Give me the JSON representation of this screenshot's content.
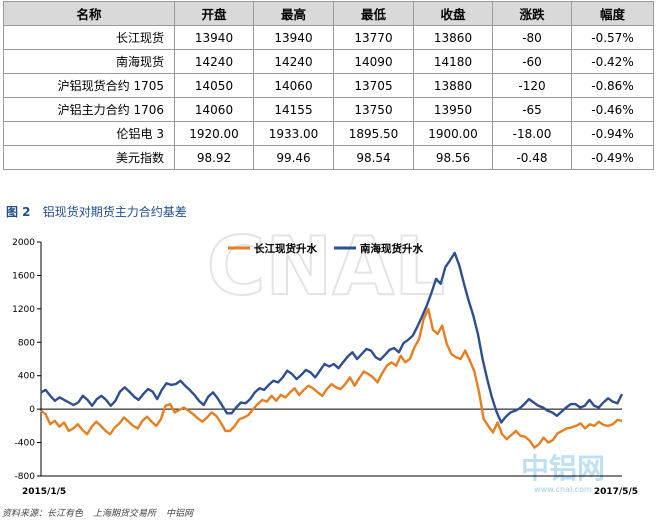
{
  "table": {
    "headers": [
      "名称",
      "开盘",
      "最高",
      "最低",
      "收盘",
      "涨跌",
      "幅度"
    ],
    "rows": [
      [
        "长江现货",
        "13940",
        "13940",
        "13770",
        "13860",
        "-80",
        "-0.57%"
      ],
      [
        "南海现货",
        "14240",
        "14240",
        "14090",
        "14180",
        "-60",
        "-0.42%"
      ],
      [
        "沪铝现货合约 1705",
        "14050",
        "14060",
        "13705",
        "13880",
        "-120",
        "-0.86%"
      ],
      [
        "沪铝主力合约 1706",
        "14060",
        "14155",
        "13750",
        "13950",
        "-65",
        "-0.46%"
      ],
      [
        "伦铝电 3",
        "1920.00",
        "1933.00",
        "1895.50",
        "1900.00",
        "-18.00",
        "-0.94%"
      ],
      [
        "美元指数",
        "98.92",
        "99.46",
        "98.54",
        "98.56",
        "-0.48",
        "-0.49%"
      ]
    ]
  },
  "figure": {
    "number": "图 2",
    "title": "铝现货对期货主力合约基差"
  },
  "source": [
    "资料来源：长江有色",
    "上海期货交易所",
    "中铝网"
  ],
  "watermarks": {
    "main": "CNAL",
    "logo": "中铝网",
    "site": "www.cnal.com"
  },
  "colors": {
    "changjiang": "#e67e22",
    "nanhai": "#2e4e8f",
    "header_bg": "#d9d9d9",
    "title": "#1f4e8c"
  },
  "chart_data": {
    "type": "line",
    "x_start": "2015/1/5",
    "x_end": "2017/5/5",
    "ylim": [
      -800,
      2000
    ],
    "yticks": [
      2000,
      1600,
      1200,
      800,
      400,
      0,
      -400,
      -800
    ],
    "legend_position": "top-center",
    "series": [
      {
        "name": "长江现货升水",
        "color": "#e67e22",
        "values": [
          -20,
          -60,
          -180,
          -140,
          -210,
          -160,
          -260,
          -230,
          -180,
          -250,
          -300,
          -210,
          -150,
          -200,
          -260,
          -300,
          -220,
          -170,
          -100,
          -150,
          -200,
          -230,
          -140,
          -90,
          -150,
          -200,
          -120,
          40,
          60,
          -40,
          -10,
          20,
          -20,
          -60,
          -110,
          -150,
          -100,
          -40,
          -80,
          -160,
          -260,
          -260,
          -200,
          -120,
          -100,
          -70,
          0,
          60,
          110,
          90,
          160,
          100,
          170,
          140,
          200,
          250,
          170,
          230,
          280,
          250,
          200,
          160,
          240,
          300,
          260,
          240,
          300,
          380,
          280,
          370,
          450,
          420,
          380,
          320,
          430,
          520,
          560,
          520,
          640,
          560,
          600,
          740,
          840,
          1080,
          1200,
          950,
          900,
          1000,
          780,
          660,
          620,
          600,
          700,
          580,
          450,
          200,
          -120,
          -200,
          -280,
          -160,
          -300,
          -360,
          -310,
          -260,
          -320,
          -330,
          -380,
          -460,
          -420,
          -340,
          -400,
          -370,
          -290,
          -260,
          -230,
          -220,
          -200,
          -170,
          -230,
          -180,
          -200,
          -150,
          -190,
          -200,
          -180,
          -130,
          -140
        ]
      },
      {
        "name": "南海现货升水",
        "color": "#2e4e8f",
        "values": [
          200,
          230,
          160,
          100,
          140,
          110,
          80,
          50,
          80,
          160,
          110,
          40,
          120,
          160,
          110,
          40,
          100,
          210,
          260,
          210,
          150,
          110,
          180,
          240,
          210,
          120,
          230,
          310,
          290,
          300,
          340,
          280,
          230,
          170,
          100,
          50,
          150,
          200,
          130,
          40,
          -50,
          -50,
          20,
          80,
          70,
          120,
          200,
          250,
          230,
          290,
          340,
          320,
          380,
          460,
          420,
          360,
          410,
          470,
          440,
          380,
          460,
          540,
          510,
          540,
          490,
          560,
          630,
          680,
          600,
          660,
          720,
          700,
          620,
          590,
          650,
          710,
          730,
          680,
          790,
          830,
          880,
          990,
          1110,
          1240,
          1390,
          1560,
          1500,
          1700,
          1780,
          1870,
          1720,
          1500,
          1300,
          1120,
          900,
          600,
          360,
          140,
          -30,
          -160,
          -90,
          -40,
          -20,
          10,
          60,
          120,
          80,
          40,
          20,
          -20,
          -40,
          -80,
          -30,
          20,
          60,
          60,
          20,
          40,
          110,
          40,
          20,
          80,
          130,
          90,
          70,
          180
        ]
      }
    ]
  }
}
